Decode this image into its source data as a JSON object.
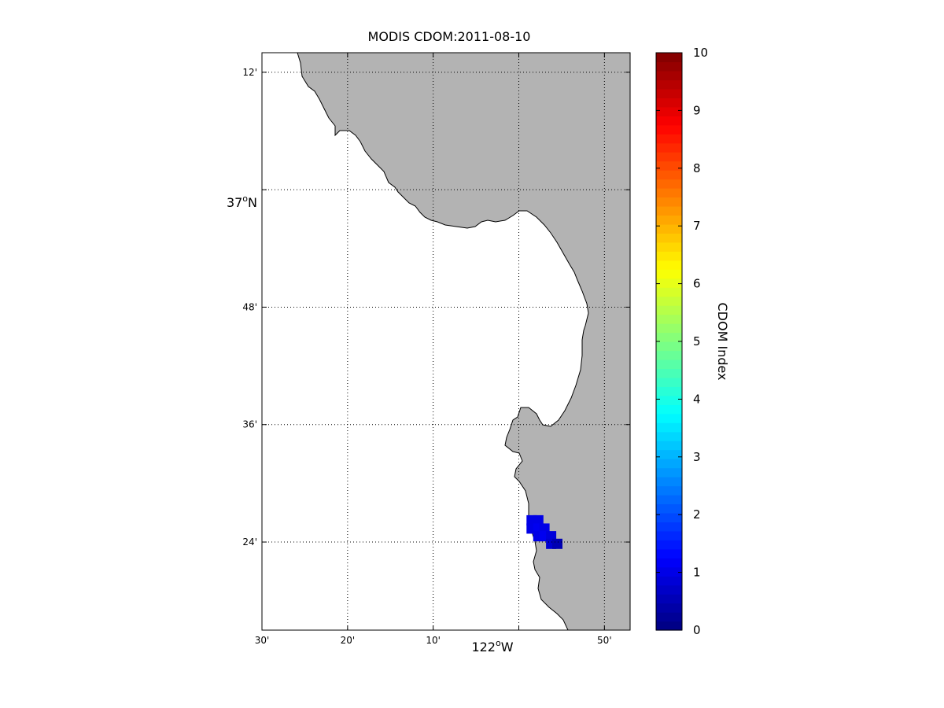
{
  "title": "MODIS CDOM:2011-08-10",
  "map": {
    "lon_range": [
      -122.5,
      -121.7833
    ],
    "lat_range": [
      37.2333,
      36.25
    ],
    "x_ticks": [
      {
        "lon": -122.5,
        "label": "30'"
      },
      {
        "lon": -122.3333,
        "label": "20'"
      },
      {
        "lon": -122.1667,
        "label": "10'"
      },
      {
        "lon": -122.0,
        "label": ""
      },
      {
        "lon": -121.8333,
        "label": "50'"
      }
    ],
    "y_ticks": [
      {
        "lat": 37.2,
        "label": "12'"
      },
      {
        "lat": 37.0,
        "label": ""
      },
      {
        "lat": 36.8,
        "label": "48'"
      },
      {
        "lat": 36.6,
        "label": "36'"
      },
      {
        "lat": 36.4,
        "label": "24'"
      }
    ],
    "lon_main_label": {
      "deg": "122",
      "sup": "o",
      "hemi": "W"
    },
    "lat_main_label": {
      "deg": "37",
      "sup": "o",
      "hemi": "N"
    },
    "grid": "dotted",
    "land_color": "#b3b3b3",
    "ocean_color": "#ffffff"
  },
  "cdom_pixels": [
    {
      "lon": -121.975,
      "lat": 36.437,
      "value": 1.0
    },
    {
      "lon": -121.975,
      "lat": 36.423,
      "value": 1.0
    },
    {
      "lon": -121.962,
      "lat": 36.437,
      "value": 1.0
    },
    {
      "lon": -121.962,
      "lat": 36.423,
      "value": 1.1
    },
    {
      "lon": -121.962,
      "lat": 36.41,
      "value": 1.0
    },
    {
      "lon": -121.95,
      "lat": 36.423,
      "value": 1.0
    },
    {
      "lon": -121.95,
      "lat": 36.41,
      "value": 1.1
    },
    {
      "lon": -121.937,
      "lat": 36.41,
      "value": 0.9
    },
    {
      "lon": -121.937,
      "lat": 36.397,
      "value": 0.8
    },
    {
      "lon": -121.925,
      "lat": 36.397,
      "value": 0.5
    }
  ],
  "colorbar": {
    "label": "CDOM Index",
    "min": 0,
    "max": 10,
    "ticks": [
      "0",
      "1",
      "2",
      "3",
      "4",
      "5",
      "6",
      "7",
      "8",
      "9",
      "10"
    ],
    "colormap": "jet"
  }
}
